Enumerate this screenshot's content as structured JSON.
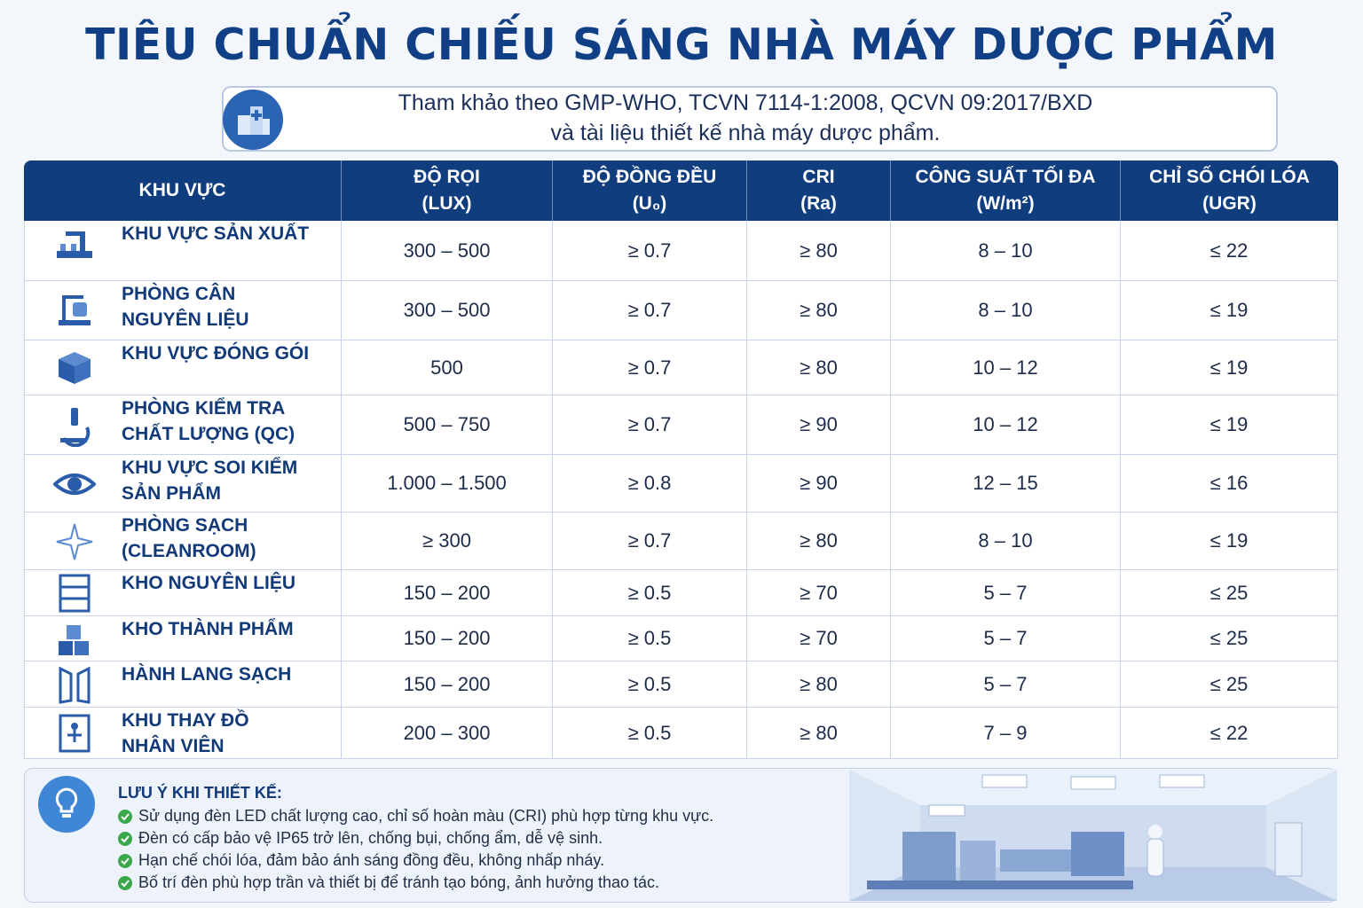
{
  "title": "TIÊU CHUẨN CHIẾU SÁNG NHÀ MÁY DƯỢC PHẨM",
  "subtitle": {
    "lines": [
      "Tham khảo theo GMP-WHO, TCVN 7114-1:2008, QCVN 09:2017/BXD",
      "và tài liệu thiết kế nhà máy dược phẩm."
    ]
  },
  "table": {
    "header": [
      {
        "lines": [
          "KHU VỰC"
        ]
      },
      {
        "lines": [
          "ĐỘ RỌI",
          "(LUX)"
        ]
      },
      {
        "lines": [
          "ĐỘ ĐỒNG ĐỀU",
          "(U₀)"
        ]
      },
      {
        "lines": [
          "CRI",
          "(Ra)"
        ]
      },
      {
        "lines": [
          "CÔNG SUẤT TỐI ĐA",
          "(W/m²)"
        ]
      },
      {
        "lines": [
          "CHỈ SỐ CHÓI LÓA",
          "(UGR)"
        ]
      }
    ],
    "rows": [
      {
        "name": [
          "KHU VỰC SẢN XUẤT"
        ],
        "cells": [
          "300 – 500",
          "≥ 0.7",
          "≥ 80",
          "8 – 10",
          "≤ 22"
        ]
      },
      {
        "name": [
          "PHÒNG CÂN",
          "NGUYÊN LIỆU"
        ],
        "cells": [
          "300 – 500",
          "≥ 0.7",
          "≥ 80",
          "8 – 10",
          "≤ 19"
        ]
      },
      {
        "name": [
          "KHU VỰC ĐÓNG GÓI"
        ],
        "cells": [
          "500",
          "≥ 0.7",
          "≥ 80",
          "10 – 12",
          "≤ 19"
        ]
      },
      {
        "name": [
          "PHÒNG KIỂM TRA",
          "CHẤT LƯỢNG (QC)"
        ],
        "cells": [
          "500 – 750",
          "≥ 0.7",
          "≥ 90",
          "10 – 12",
          "≤ 19"
        ]
      },
      {
        "name": [
          "KHU VỰC SOI KIỂM",
          "SẢN PHẨM"
        ],
        "cells": [
          "1.000 – 1.500",
          "≥ 0.8",
          "≥ 90",
          "12 – 15",
          "≤ 16"
        ]
      },
      {
        "name": [
          "PHÒNG SẠCH",
          "(CLEANROOM)"
        ],
        "cells": [
          "≥ 300",
          "≥ 0.7",
          "≥ 80",
          "8 – 10",
          "≤ 19"
        ]
      },
      {
        "name": [
          "KHO NGUYÊN LIỆU"
        ],
        "cells": [
          "150 – 200",
          "≥ 0.5",
          "≥ 70",
          "5 – 7",
          "≤ 25"
        ]
      },
      {
        "name": [
          "KHO THÀNH PHẨM"
        ],
        "cells": [
          "150 – 200",
          "≥ 0.5",
          "≥ 70",
          "5 – 7",
          "≤ 25"
        ]
      },
      {
        "name": [
          "HÀNH LANG SẠCH"
        ],
        "cells": [
          "150 – 200",
          "≥ 0.5",
          "≥ 80",
          "5 – 7",
          "≤ 25"
        ]
      },
      {
        "name": [
          "KHU THAY ĐỒ",
          "NHÂN VIÊN"
        ],
        "cells": [
          "200 – 300",
          "≥ 0.5",
          "≥ 80",
          "7 – 9",
          "≤ 22"
        ]
      }
    ]
  },
  "notes": {
    "title": "LƯU Ý KHI THIẾT KẾ:",
    "items": [
      "Sử dụng đèn LED chất lượng cao, chỉ số hoàn màu (CRI) phù hợp từng khu vực.",
      "Đèn có cấp bảo vệ IP65 trở lên, chống bụi, chống ẩm, dễ vệ sinh.",
      "Hạn chế chói lóa, đảm bảo ánh sáng đồng đều, không nhấp nháy.",
      "Bố trí đèn phù hợp trần và thiết bị để tránh tạo bóng, ảnh hưởng thao tác."
    ]
  }
}
